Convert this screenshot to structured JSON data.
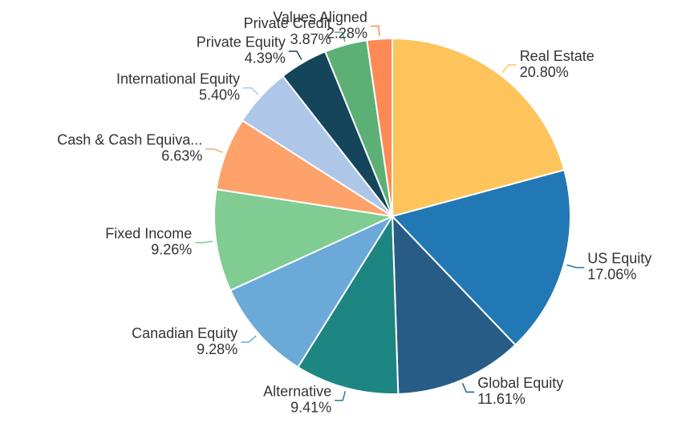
{
  "chart_data": {
    "type": "pie",
    "categories": [
      "Real Estate",
      "US Equity",
      "Global Equity",
      "Alternative",
      "Canadian Equity",
      "Fixed Income",
      "Cash & Cash Equiva...",
      "International Equity",
      "Private Equity",
      "Private Credit",
      "Values Aligned"
    ],
    "values": [
      20.8,
      17.06,
      11.61,
      9.41,
      9.28,
      9.26,
      6.63,
      5.4,
      4.39,
      3.87,
      2.28
    ],
    "value_labels": [
      "20.80%",
      "17.06%",
      "11.61%",
      "9.41%",
      "9.28%",
      "9.26%",
      "6.63%",
      "5.40%",
      "4.39%",
      "3.87%",
      "2.28%"
    ],
    "colors": [
      "#fdc45c",
      "#2178b4",
      "#265c86",
      "#1d8582",
      "#6aa9d8",
      "#80cc92",
      "#fda26a",
      "#aec7e8",
      "#14455a",
      "#5cb075",
      "#fd8a55"
    ]
  }
}
